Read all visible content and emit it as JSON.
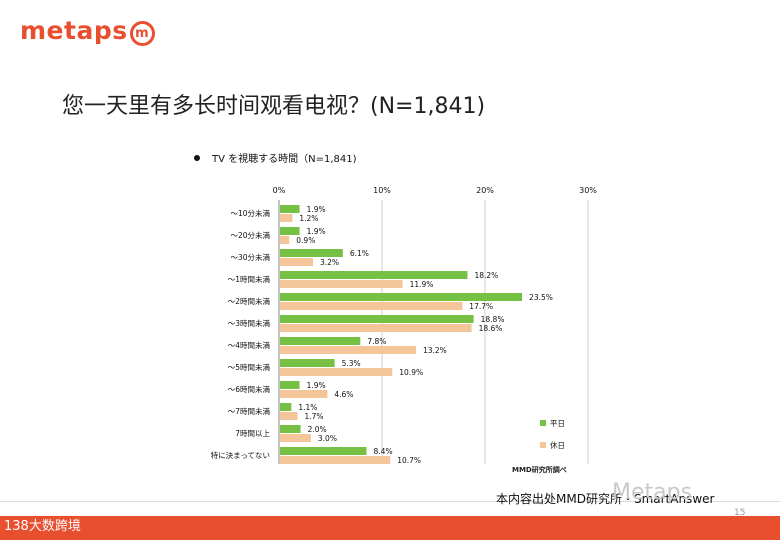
{
  "logo": {
    "text": "metaps",
    "mark": "m"
  },
  "headline": "您一天里有多长时间观看电视？(N=1,841)",
  "chart_data": {
    "type": "bar",
    "orientation": "horizontal",
    "title": "TV を視聴する時間（N=1,841)",
    "categories": [
      "～10分未満",
      "～20分未満",
      "～30分未満",
      "～1時間未満",
      "～2時間未満",
      "～3時間未満",
      "～4時間未満",
      "～5時間未満",
      "～6時間未満",
      "～7時間未満",
      "7時間以上",
      "特に決まってない"
    ],
    "series": [
      {
        "name": "平日",
        "color": "#76c043",
        "values": [
          1.9,
          1.9,
          6.1,
          18.2,
          23.5,
          18.8,
          7.8,
          5.3,
          1.9,
          1.1,
          2.0,
          8.4
        ]
      },
      {
        "name": "休日",
        "color": "#f5c59a",
        "values": [
          1.2,
          0.9,
          3.2,
          11.9,
          17.7,
          18.6,
          13.2,
          10.9,
          4.6,
          1.7,
          3.0,
          10.7
        ]
      }
    ],
    "xlim": [
      0,
      30
    ],
    "ticks": [
      "0%",
      "10%",
      "20%",
      "30%"
    ],
    "grid": true,
    "legend_position": "right-bottom",
    "source": "MMD研究所調べ"
  },
  "footer": {
    "text": "本内容出处MMD研究所・SmartAnswer",
    "page": "15"
  },
  "bottom_bar": {
    "text": "138大数跨境"
  },
  "watermark": "Metaps"
}
